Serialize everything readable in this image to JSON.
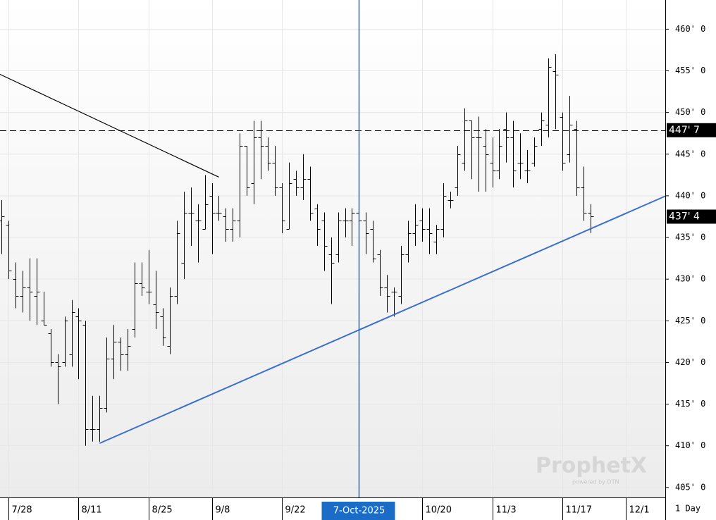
{
  "chart_data": {
    "type": "ohlc",
    "interval": "1 Day",
    "categories": [
      null,
      "7/28",
      null,
      null,
      null,
      null,
      null,
      null,
      null,
      null,
      null,
      "8/11",
      null,
      null,
      null,
      null,
      null,
      null,
      null,
      null,
      null,
      "8/25",
      null,
      null,
      null,
      null,
      null,
      null,
      null,
      null,
      "9/8",
      null,
      null,
      null,
      null,
      null,
      null,
      null,
      null,
      null,
      "9/22",
      null,
      null,
      null,
      null,
      null,
      null,
      null,
      null,
      null,
      null,
      null,
      null,
      null,
      null,
      null,
      null,
      null,
      null,
      null,
      "10/20",
      null,
      null,
      null,
      null,
      null,
      null,
      null,
      null,
      null,
      "11/3",
      null,
      null,
      null,
      null,
      null,
      null,
      null,
      null,
      null,
      "11/17",
      null,
      null,
      null,
      null,
      null,
      null,
      null,
      null,
      "12/1",
      null,
      null,
      null,
      null
    ],
    "open": [
      437,
      436.5,
      430,
      428,
      429,
      428,
      425,
      423.5,
      420,
      420,
      421,
      425.5,
      424.5,
      412,
      412,
      414.5,
      420.5,
      422.5,
      421,
      424,
      429.5,
      428.5,
      427,
      425.5,
      422,
      428,
      432,
      438,
      437,
      436,
      440,
      438,
      437.5,
      436,
      437,
      446,
      441.5,
      447,
      446,
      444,
      441,
      436,
      442,
      441,
      442,
      438.5,
      437,
      433,
      433,
      437,
      437,
      438,
      437,
      436,
      433,
      429,
      428.5,
      428,
      433,
      435.5,
      437,
      436,
      434.5,
      436,
      439.5,
      441,
      444,
      449,
      447,
      446,
      444,
      443,
      448,
      447,
      444,
      443,
      444,
      448,
      448.5,
      455,
      449.5,
      445,
      448,
      441,
      438,
      null,
      null,
      null,
      null,
      null,
      null,
      null,
      null,
      null
    ],
    "high": [
      439.5,
      437,
      432,
      431,
      432.5,
      432.5,
      428.5,
      424,
      421,
      425.5,
      427.5,
      426.5,
      425,
      416,
      416,
      423,
      424.5,
      423,
      424,
      432,
      432,
      433.5,
      431,
      426.5,
      429,
      437,
      440.5,
      441,
      439,
      442.5,
      441.5,
      440,
      438.5,
      438.5,
      447.5,
      446,
      449,
      449,
      447,
      446,
      441.5,
      444,
      443,
      445,
      443.5,
      439,
      438,
      435,
      438,
      438.5,
      438.5,
      439,
      438,
      437,
      433.5,
      430.5,
      429,
      434,
      437,
      439,
      438.5,
      438.5,
      436.5,
      441.5,
      440.5,
      446,
      450.5,
      449,
      449.5,
      448,
      447,
      448,
      450,
      449,
      447.5,
      445.5,
      447,
      450,
      456.5,
      457,
      450,
      452,
      449,
      443.5,
      439,
      null,
      null,
      null,
      null,
      null,
      null,
      null,
      null,
      null
    ],
    "low": [
      433,
      430,
      426.5,
      426,
      425,
      424.5,
      424.5,
      419.5,
      415,
      419.5,
      419.5,
      418,
      410,
      410.5,
      410.5,
      414,
      418,
      419,
      419,
      423,
      428,
      427,
      424,
      422,
      421,
      427,
      430,
      434,
      432,
      436,
      433,
      437,
      434.5,
      434.5,
      435,
      440,
      439,
      442,
      443,
      440,
      435.5,
      436,
      440,
      439.5,
      437,
      434,
      431,
      427,
      432,
      435,
      434,
      435,
      433,
      432,
      428,
      426,
      425.5,
      427,
      432,
      434,
      434.5,
      433,
      433,
      435,
      438.5,
      440,
      443,
      442,
      440.5,
      440.5,
      441,
      442,
      444,
      441,
      442,
      441.5,
      443.5,
      446,
      447,
      448,
      443,
      444,
      440,
      437,
      435.5,
      null,
      null,
      null,
      null,
      null,
      null,
      null,
      null,
      null
    ],
    "close": [
      437.5,
      431,
      428,
      429,
      428.5,
      428.5,
      424.5,
      420,
      419.5,
      425,
      426,
      425,
      412,
      412,
      414.5,
      420.5,
      422.5,
      421,
      422,
      429.5,
      429,
      428.5,
      426,
      423,
      428,
      435.5,
      438,
      438,
      437,
      439,
      438,
      438,
      436,
      437,
      446,
      441,
      447,
      446,
      444,
      441,
      437,
      441.5,
      441,
      442,
      438,
      436,
      434,
      432,
      437,
      437,
      438,
      437,
      435.5,
      432.5,
      429,
      428,
      428.5,
      433,
      435.5,
      436.5,
      436,
      435.5,
      436,
      440,
      439.5,
      445,
      449,
      447,
      447,
      445,
      443,
      446,
      447,
      443,
      444,
      443,
      446,
      449,
      455.5,
      454.5,
      444,
      448.5,
      441,
      438,
      437.5,
      null,
      null,
      null,
      null,
      null,
      null,
      null,
      null,
      null
    ],
    "bar_color": "#000000",
    "ylim": [
      403.8,
      463.5
    ],
    "yticks": [
      {
        "value": 405,
        "label": "405' 0"
      },
      {
        "value": 410,
        "label": "410' 0"
      },
      {
        "value": 415,
        "label": "415' 0"
      },
      {
        "value": 420,
        "label": "420' 0"
      },
      {
        "value": 425,
        "label": "425' 0"
      },
      {
        "value": 430,
        "label": "430' 0"
      },
      {
        "value": 435,
        "label": "435' 0"
      },
      {
        "value": 440,
        "label": "440' 0"
      },
      {
        "value": 445,
        "label": "445' 0"
      },
      {
        "value": 450,
        "label": "450' 0"
      },
      {
        "value": 455,
        "label": "455' 0"
      },
      {
        "value": 460,
        "label": "460' 0"
      }
    ],
    "grid": true,
    "hline": {
      "value": 447.875,
      "label": "447' 7",
      "color": "#000000"
    },
    "last_price": {
      "value": 437.5,
      "label": "437' 4"
    },
    "crosshair": {
      "index": 51,
      "label": "7-Oct-2025",
      "color": "#1a6cc6"
    },
    "trendlines": [
      {
        "points": [
          [
            0,
            454.5
          ],
          [
            31,
            442.25
          ]
        ],
        "extend": "left",
        "color": "#000000"
      },
      {
        "points": [
          [
            14,
            410.3
          ],
          [
            82,
            435.3
          ]
        ],
        "extend": "right",
        "color": "#3a6fd2"
      }
    ],
    "watermark": {
      "title": "ProphetX",
      "subtitle": "powered by DTN"
    }
  }
}
